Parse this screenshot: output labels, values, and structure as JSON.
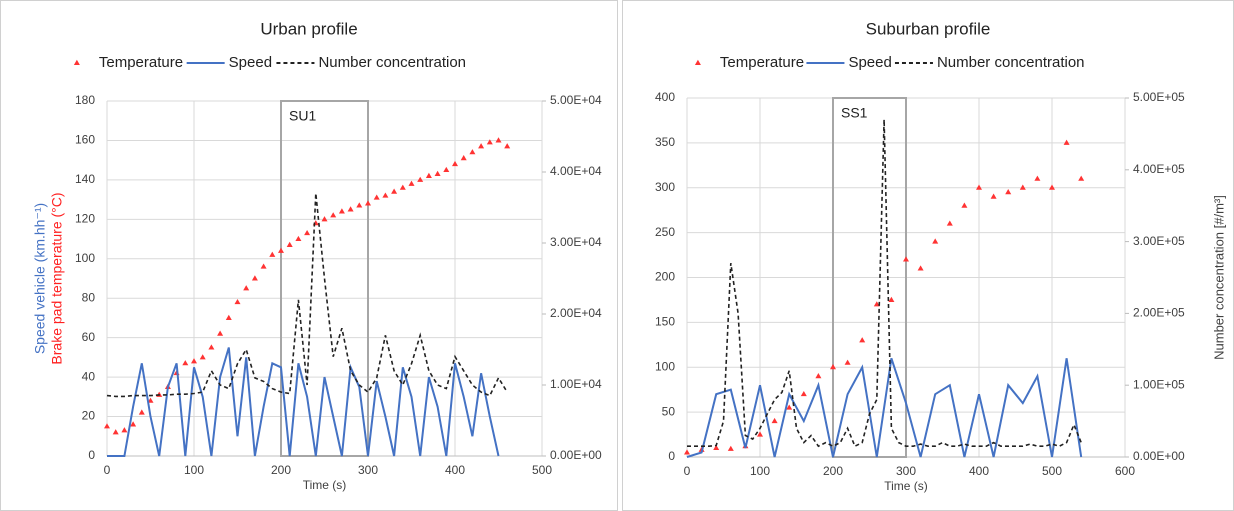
{
  "chart_data": [
    {
      "type": "line",
      "title": "Urban profile",
      "xlabel": "Time (s)",
      "ylabel": [
        "Speed vehicle (km.hh⁻¹)",
        "Brake pad temperature (°C)"
      ],
      "xlim": [
        0,
        500
      ],
      "xticks": [
        0,
        100,
        200,
        300,
        400,
        500
      ],
      "ylim": [
        0,
        180
      ],
      "yticks": [
        0,
        20,
        40,
        60,
        80,
        100,
        120,
        140,
        160,
        180
      ],
      "y2lim": [
        0,
        50000
      ],
      "y2ticks": [
        {
          "value": 0,
          "label": "0.00E+00"
        },
        {
          "value": 10000,
          "label": "1.00E+04"
        },
        {
          "value": 20000,
          "label": "2.00E+04"
        },
        {
          "value": 30000,
          "label": "3.00E+04"
        },
        {
          "value": 40000,
          "label": "4.00E+04"
        },
        {
          "value": 50000,
          "label": "5.00E+04"
        }
      ],
      "grid": true,
      "annotations": [
        {
          "text": "SU1",
          "x": [
            200,
            300
          ]
        }
      ],
      "series": [
        {
          "name": "Temperature",
          "style": "marker",
          "color": "#ff3333",
          "x": [
            0,
            10,
            20,
            30,
            40,
            50,
            60,
            70,
            80,
            90,
            100,
            110,
            120,
            130,
            140,
            150,
            160,
            170,
            180,
            190,
            200,
            210,
            220,
            230,
            240,
            250,
            260,
            270,
            280,
            290,
            300,
            310,
            320,
            330,
            340,
            350,
            360,
            370,
            380,
            390,
            400,
            410,
            420,
            430,
            440,
            450,
            460
          ],
          "values": [
            15,
            12,
            13,
            16,
            22,
            28,
            31,
            35,
            42,
            47,
            48,
            50,
            55,
            62,
            70,
            78,
            85,
            90,
            96,
            102,
            104,
            107,
            110,
            113,
            118,
            120,
            122,
            124,
            125,
            127,
            128,
            131,
            132,
            134,
            136,
            138,
            140,
            142,
            143,
            145,
            148,
            151,
            154,
            157,
            159,
            160,
            157
          ]
        },
        {
          "name": "Speed",
          "style": "solid",
          "color": "#4472c4",
          "x": [
            0,
            10,
            20,
            30,
            40,
            50,
            60,
            70,
            80,
            90,
            100,
            110,
            120,
            130,
            140,
            150,
            160,
            170,
            180,
            190,
            200,
            210,
            220,
            230,
            240,
            250,
            260,
            270,
            280,
            290,
            300,
            310,
            320,
            330,
            340,
            350,
            360,
            370,
            380,
            390,
            400,
            410,
            420,
            430,
            440,
            450
          ],
          "values": [
            0,
            0,
            0,
            25,
            47,
            20,
            0,
            35,
            47,
            0,
            45,
            30,
            0,
            40,
            55,
            10,
            50,
            0,
            25,
            47,
            45,
            0,
            47,
            30,
            0,
            40,
            20,
            0,
            45,
            35,
            0,
            38,
            20,
            0,
            45,
            30,
            0,
            40,
            25,
            0,
            47,
            30,
            10,
            42,
            20,
            0
          ]
        },
        {
          "name": "Number concentration",
          "style": "dashed",
          "color": "#222222",
          "axis": "y2",
          "x": [
            0,
            10,
            20,
            30,
            40,
            50,
            60,
            70,
            80,
            90,
            100,
            110,
            120,
            130,
            140,
            150,
            160,
            170,
            180,
            190,
            200,
            210,
            220,
            230,
            240,
            250,
            260,
            270,
            280,
            290,
            300,
            310,
            320,
            330,
            340,
            350,
            360,
            370,
            380,
            390,
            400,
            410,
            420,
            430,
            440,
            450,
            460
          ],
          "values": [
            8500,
            8400,
            8400,
            8500,
            8500,
            8500,
            8600,
            8600,
            8700,
            8700,
            8800,
            9000,
            12000,
            10000,
            9500,
            13000,
            15000,
            11000,
            10500,
            9500,
            9000,
            8800,
            22000,
            10000,
            37000,
            25000,
            14000,
            18000,
            12000,
            10000,
            9000,
            11000,
            17000,
            12000,
            10000,
            13000,
            17000,
            12000,
            10000,
            9500,
            14000,
            12000,
            10000,
            9000,
            8500,
            11000,
            9000
          ]
        }
      ]
    },
    {
      "type": "line",
      "title": "Suburban profile",
      "xlabel": "Time (s)",
      "y2label": "Number concentration [#/m³]",
      "xlim": [
        0,
        600
      ],
      "xticks": [
        0,
        100,
        200,
        300,
        400,
        500,
        600
      ],
      "ylim": [
        0,
        400
      ],
      "yticks": [
        0,
        50,
        100,
        150,
        200,
        250,
        300,
        350,
        400
      ],
      "y2lim": [
        0,
        500000
      ],
      "y2ticks": [
        {
          "value": 0,
          "label": "0.00E+00"
        },
        {
          "value": 100000,
          "label": "1.00E+05"
        },
        {
          "value": 200000,
          "label": "2.00E+05"
        },
        {
          "value": 300000,
          "label": "3.00E+05"
        },
        {
          "value": 400000,
          "label": "4.00E+05"
        },
        {
          "value": 500000,
          "label": "5.00E+05"
        }
      ],
      "grid": true,
      "annotations": [
        {
          "text": "SS1",
          "x": [
            200,
            300
          ]
        }
      ],
      "series": [
        {
          "name": "Temperature",
          "style": "marker",
          "color": "#ff3333",
          "x": [
            0,
            20,
            40,
            60,
            80,
            100,
            120,
            140,
            160,
            180,
            200,
            220,
            240,
            260,
            280,
            300,
            320,
            340,
            360,
            380,
            400,
            420,
            440,
            460,
            480,
            500,
            520,
            540
          ],
          "values": [
            5,
            8,
            10,
            9,
            12,
            25,
            40,
            55,
            70,
            90,
            100,
            105,
            130,
            170,
            175,
            220,
            210,
            240,
            260,
            280,
            300,
            290,
            295,
            300,
            310,
            300,
            350,
            310
          ]
        },
        {
          "name": "Speed",
          "style": "solid",
          "color": "#4472c4",
          "x": [
            0,
            20,
            40,
            60,
            80,
            100,
            120,
            140,
            160,
            180,
            200,
            220,
            240,
            260,
            280,
            300,
            320,
            340,
            360,
            380,
            400,
            420,
            440,
            460,
            480,
            500,
            520,
            540
          ],
          "values": [
            0,
            5,
            70,
            75,
            10,
            80,
            0,
            70,
            40,
            80,
            0,
            70,
            100,
            0,
            110,
            60,
            0,
            70,
            80,
            0,
            70,
            0,
            80,
            60,
            90,
            0,
            110,
            0
          ]
        },
        {
          "name": "Number concentration",
          "style": "dashed",
          "color": "#222222",
          "axis": "y2",
          "x": [
            0,
            10,
            20,
            30,
            40,
            50,
            60,
            70,
            80,
            90,
            100,
            110,
            120,
            130,
            140,
            150,
            160,
            170,
            180,
            190,
            200,
            210,
            220,
            230,
            240,
            250,
            260,
            270,
            280,
            290,
            300,
            310,
            320,
            330,
            340,
            350,
            360,
            370,
            380,
            390,
            400,
            410,
            420,
            430,
            440,
            450,
            460,
            470,
            480,
            490,
            500,
            510,
            520,
            530,
            540
          ],
          "values": [
            15000,
            15000,
            15000,
            15000,
            16000,
            50000,
            270000,
            200000,
            30000,
            25000,
            40000,
            60000,
            80000,
            90000,
            120000,
            40000,
            20000,
            30000,
            15000,
            20000,
            15000,
            20000,
            40000,
            15000,
            20000,
            60000,
            80000,
            470000,
            40000,
            20000,
            15000,
            15000,
            18000,
            15000,
            15000,
            20000,
            15000,
            15000,
            18000,
            15000,
            15000,
            15000,
            20000,
            15000,
            15000,
            15000,
            15000,
            18000,
            15000,
            15000,
            18000,
            15000,
            20000,
            45000,
            20000
          ]
        }
      ]
    }
  ]
}
